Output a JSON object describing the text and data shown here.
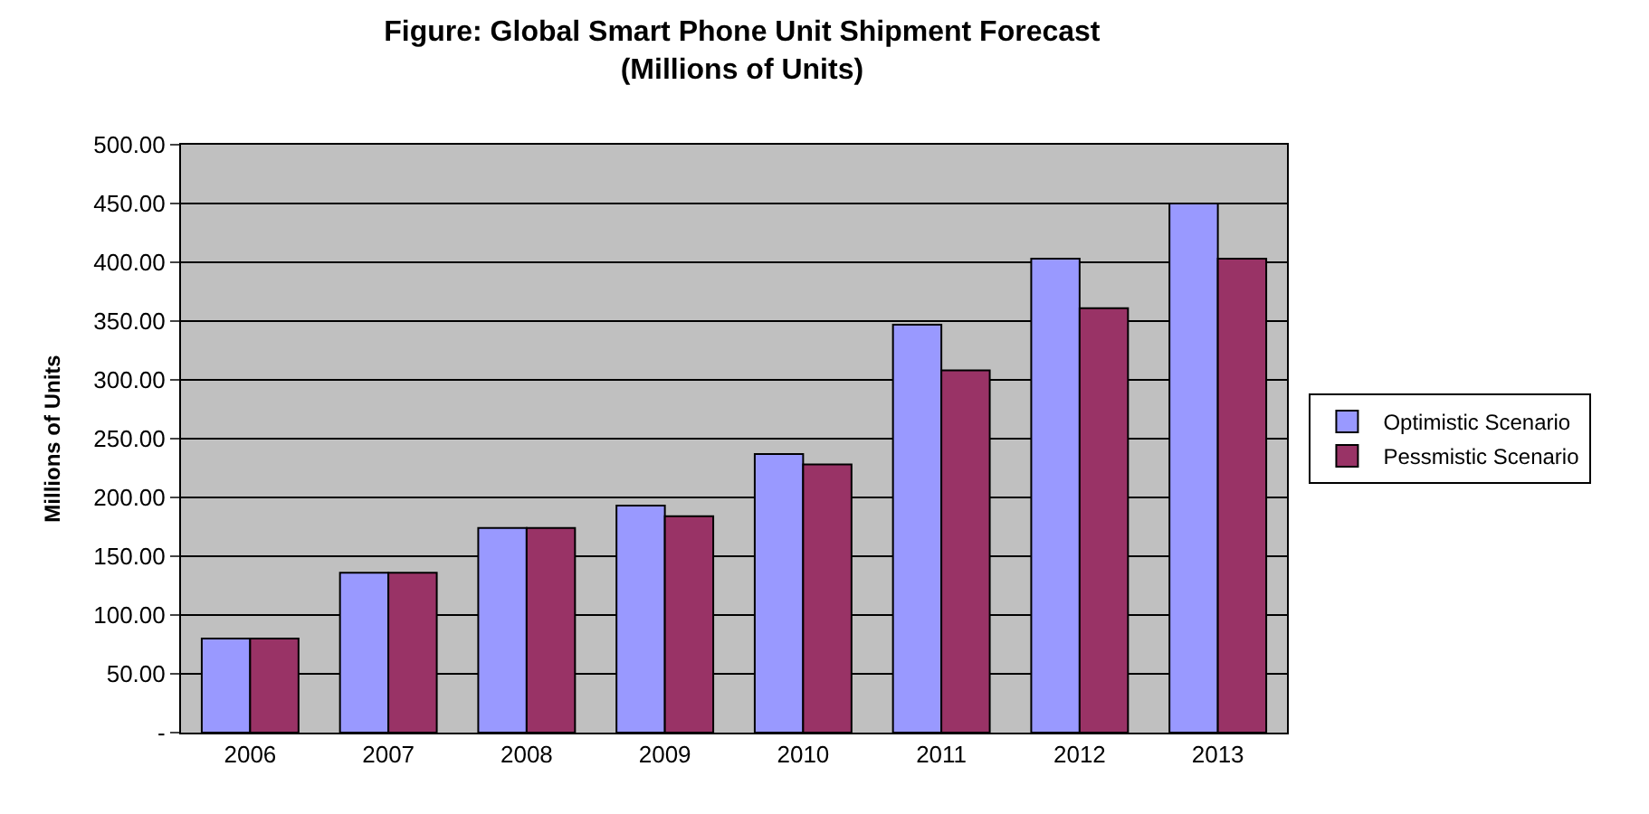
{
  "chart_data": {
    "type": "bar",
    "title": "Figure: Global Smart Phone Unit Shipment Forecast\n(Millions of Units)",
    "ylabel": "Millions of Units",
    "categories": [
      "2006",
      "2007",
      "2008",
      "2009",
      "2010",
      "2011",
      "2012",
      "2013"
    ],
    "series": [
      {
        "name": "Optimistic Scenario",
        "color": "#9999ff",
        "values": [
          80,
          136,
          174,
          193,
          237,
          347,
          403,
          450
        ]
      },
      {
        "name": "Pessmistic Scenario",
        "color": "#993366",
        "values": [
          80,
          136,
          174,
          184,
          228,
          308,
          361,
          403
        ]
      }
    ],
    "ylim": [
      0,
      500
    ],
    "yticks": [
      {
        "value": 0,
        "label": "-"
      },
      {
        "value": 50,
        "label": "50.00"
      },
      {
        "value": 100,
        "label": "100.00"
      },
      {
        "value": 150,
        "label": "150.00"
      },
      {
        "value": 200,
        "label": "200.00"
      },
      {
        "value": 250,
        "label": "250.00"
      },
      {
        "value": 300,
        "label": "300.00"
      },
      {
        "value": 350,
        "label": "350.00"
      },
      {
        "value": 400,
        "label": "400.00"
      },
      {
        "value": 450,
        "label": "450.00"
      },
      {
        "value": 500,
        "label": "500.00"
      }
    ],
    "grid": "y",
    "legend": "right"
  }
}
